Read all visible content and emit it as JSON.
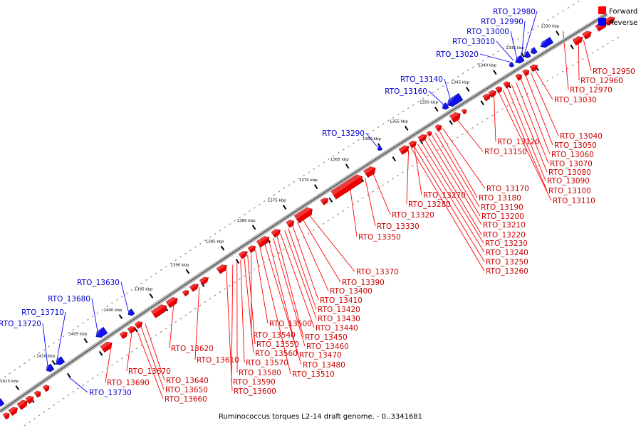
{
  "caption": "Ruminococcus torques L2-14 draft genome. - 0..3341681",
  "legend": {
    "forward_label": "Forward",
    "reverse_label": "Reverse",
    "forward_color": "#ff0000",
    "reverse_color": "#0000ff"
  },
  "colors": {
    "forward": "#ee0000",
    "forward_text": "#cc0000",
    "reverse": "#1111ee",
    "reverse_text": "#0000cc"
  },
  "kbp_ticks": [
    "1330 kbp",
    "1335 kbp",
    "1340 kbp",
    "1345 kbp",
    "1350 kbp",
    "1355 kbp",
    "1360 kbp",
    "1365 kbp",
    "1370 kbp",
    "1375 kbp",
    "1380 kbp",
    "1385 kbp",
    "1390 kbp",
    "1395 kbp",
    "1400 kbp",
    "1405 kbp",
    "1410 kbp",
    "1415 kbp"
  ],
  "reverse_genes": [
    "RTO_12980",
    "RTO_12990",
    "RTO_13000",
    "RTO_13010",
    "RTO_13020",
    "RTO_13140",
    "RTO_13160",
    "RTO_13290",
    "RTO_13630",
    "RTO_13680",
    "RTO_13710",
    "RTO_13720",
    "RTO_13730"
  ],
  "forward_genes": [
    "RTO_12950",
    "RTO_12960",
    "RTO_12970",
    "RTO_13030",
    "RTO_13040",
    "RTO_13050",
    "RTO_13060",
    "RTO_13070",
    "RTO_13080",
    "RTO_13090",
    "RTO_13100",
    "RTO_13110",
    "RTO_13120",
    "RTO_13150",
    "RTO_13170",
    "RTO_13180",
    "RTO_13190",
    "RTO_13200",
    "RTO_13210",
    "RTO_13220",
    "RTO_13230",
    "RTO_13240",
    "RTO_13250",
    "RTO_13260",
    "RTO_13270",
    "RTO_13280",
    "RTO_13320",
    "RTO_13330",
    "RTO_13350",
    "RTO_13370",
    "RTO_13390",
    "RTO_13400",
    "RTO_13410",
    "RTO_13420",
    "RTO_13430",
    "RTO_13440",
    "RTO_13450",
    "RTO_13460",
    "RTO_13470",
    "RTO_13480",
    "RTO_13500",
    "RTO_13510",
    "RTO_13540",
    "RTO_13550",
    "RTO_13560",
    "RTO_13570",
    "RTO_13580",
    "RTO_13590",
    "RTO_13600",
    "RTO_13610",
    "RTO_13620",
    "RTO_13640",
    "RTO_13650",
    "RTO_13660",
    "RTO_13670",
    "RTO_13690"
  ]
}
